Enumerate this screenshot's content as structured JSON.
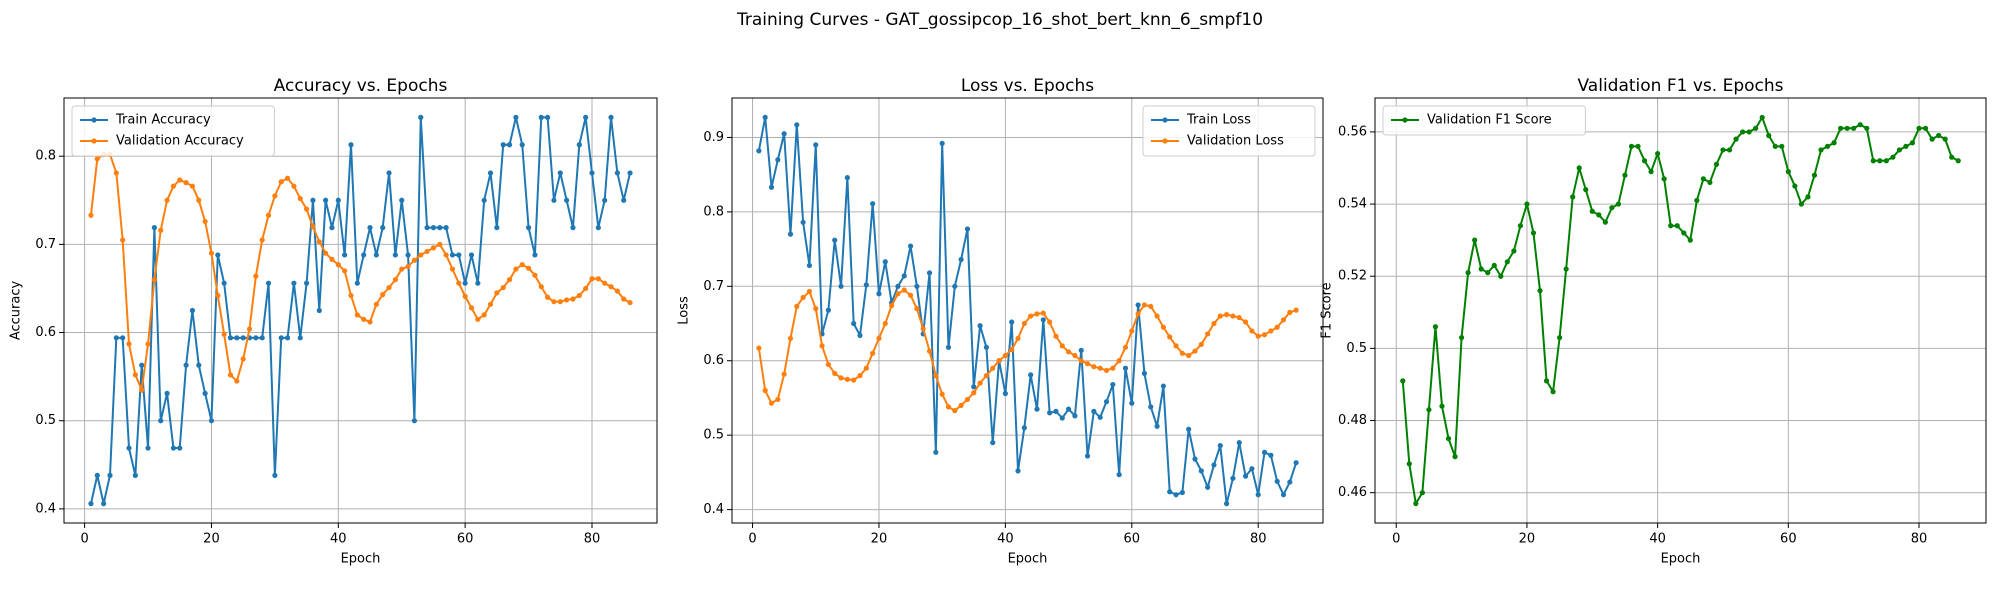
{
  "title": "Training Curves - GAT_gossipcop_16_shot_bert_knn_6_smpf10",
  "chart_data": [
    {
      "type": "line",
      "title": "Accuracy vs. Epochs",
      "xlabel": "Epoch",
      "ylabel": "Accuracy",
      "grid": true,
      "legend": "upper left",
      "x": [
        1,
        2,
        3,
        4,
        5,
        6,
        7,
        8,
        9,
        10,
        11,
        12,
        13,
        14,
        15,
        16,
        17,
        18,
        19,
        20,
        21,
        22,
        23,
        24,
        25,
        26,
        27,
        28,
        29,
        30,
        31,
        32,
        33,
        34,
        35,
        36,
        37,
        38,
        39,
        40,
        41,
        42,
        43,
        44,
        45,
        46,
        47,
        48,
        49,
        50,
        51,
        52,
        53,
        54,
        55,
        56,
        57,
        58,
        59,
        60,
        61,
        62,
        63,
        64,
        65,
        66,
        67,
        68,
        69,
        70,
        71,
        72,
        73,
        74,
        75,
        76,
        77,
        78,
        79,
        80,
        81,
        82,
        83,
        84,
        85,
        86
      ],
      "xlim": [
        -3.25,
        90.25
      ],
      "xticks": [
        0,
        20,
        40,
        60,
        80
      ],
      "ylim": [
        0.384,
        0.866
      ],
      "yticks": [
        0.4,
        0.5,
        0.6,
        0.7,
        0.8
      ],
      "series": [
        {
          "name": "Train Accuracy",
          "color": "#1f77b4",
          "values": [
            0.406,
            0.438,
            0.406,
            0.438,
            0.594,
            0.594,
            0.469,
            0.438,
            0.563,
            0.469,
            0.719,
            0.5,
            0.531,
            0.469,
            0.469,
            0.563,
            0.625,
            0.563,
            0.531,
            0.5,
            0.688,
            0.656,
            0.594,
            0.594,
            0.594,
            0.594,
            0.594,
            0.594,
            0.656,
            0.438,
            0.594,
            0.594,
            0.656,
            0.594,
            0.656,
            0.75,
            0.625,
            0.75,
            0.719,
            0.75,
            0.688,
            0.813,
            0.656,
            0.688,
            0.719,
            0.688,
            0.719,
            0.781,
            0.688,
            0.75,
            0.688,
            0.5,
            0.844,
            0.719,
            0.719,
            0.719,
            0.719,
            0.688,
            0.688,
            0.656,
            0.688,
            0.656,
            0.75,
            0.781,
            0.719,
            0.813,
            0.813,
            0.844,
            0.813,
            0.719,
            0.688,
            0.844,
            0.844,
            0.75,
            0.781,
            0.75,
            0.719,
            0.813,
            0.844,
            0.781,
            0.719,
            0.75,
            0.844,
            0.781,
            0.75,
            0.781
          ]
        },
        {
          "name": "Validation Accuracy",
          "color": "#ff7f0e",
          "values": [
            0.733,
            0.797,
            0.802,
            0.802,
            0.781,
            0.705,
            0.587,
            0.552,
            0.535,
            0.587,
            0.66,
            0.716,
            0.75,
            0.766,
            0.773,
            0.77,
            0.766,
            0.75,
            0.726,
            0.69,
            0.642,
            0.598,
            0.552,
            0.545,
            0.57,
            0.604,
            0.664,
            0.705,
            0.733,
            0.755,
            0.771,
            0.775,
            0.766,
            0.752,
            0.74,
            0.72,
            0.703,
            0.69,
            0.683,
            0.677,
            0.67,
            0.642,
            0.62,
            0.615,
            0.612,
            0.632,
            0.643,
            0.651,
            0.66,
            0.672,
            0.675,
            0.682,
            0.688,
            0.692,
            0.696,
            0.7,
            0.688,
            0.672,
            0.656,
            0.641,
            0.628,
            0.615,
            0.62,
            0.632,
            0.645,
            0.651,
            0.66,
            0.672,
            0.677,
            0.673,
            0.665,
            0.652,
            0.64,
            0.635,
            0.635,
            0.637,
            0.638,
            0.642,
            0.65,
            0.661,
            0.661,
            0.656,
            0.652,
            0.647,
            0.638,
            0.634
          ]
        }
      ]
    },
    {
      "type": "line",
      "title": "Loss vs. Epochs",
      "xlabel": "Epoch",
      "ylabel": "Loss",
      "grid": true,
      "legend": "upper right",
      "x": [
        1,
        2,
        3,
        4,
        5,
        6,
        7,
        8,
        9,
        10,
        11,
        12,
        13,
        14,
        15,
        16,
        17,
        18,
        19,
        20,
        21,
        22,
        23,
        24,
        25,
        26,
        27,
        28,
        29,
        30,
        31,
        32,
        33,
        34,
        35,
        36,
        37,
        38,
        39,
        40,
        41,
        42,
        43,
        44,
        45,
        46,
        47,
        48,
        49,
        50,
        51,
        52,
        53,
        54,
        55,
        56,
        57,
        58,
        59,
        60,
        61,
        62,
        63,
        64,
        65,
        66,
        67,
        68,
        69,
        70,
        71,
        72,
        73,
        74,
        75,
        76,
        77,
        78,
        79,
        80,
        81,
        82,
        83,
        84,
        85,
        86
      ],
      "xlim": [
        -3.25,
        90.25
      ],
      "xticks": [
        0,
        20,
        40,
        60,
        80
      ],
      "ylim": [
        0.382,
        0.953
      ],
      "yticks": [
        0.4,
        0.5,
        0.6,
        0.7,
        0.8,
        0.9
      ],
      "series": [
        {
          "name": "Train Loss",
          "color": "#1f77b4",
          "values": [
            0.882,
            0.927,
            0.833,
            0.87,
            0.905,
            0.77,
            0.917,
            0.786,
            0.728,
            0.89,
            0.636,
            0.668,
            0.762,
            0.7,
            0.846,
            0.65,
            0.634,
            0.702,
            0.811,
            0.69,
            0.733,
            0.678,
            0.7,
            0.714,
            0.754,
            0.7,
            0.636,
            0.718,
            0.477,
            0.892,
            0.618,
            0.7,
            0.736,
            0.777,
            0.565,
            0.647,
            0.618,
            0.49,
            0.6,
            0.556,
            0.652,
            0.452,
            0.51,
            0.581,
            0.535,
            0.655,
            0.53,
            0.532,
            0.523,
            0.535,
            0.526,
            0.614,
            0.472,
            0.532,
            0.524,
            0.545,
            0.568,
            0.447,
            0.59,
            0.543,
            0.675,
            0.583,
            0.538,
            0.512,
            0.566,
            0.424,
            0.42,
            0.423,
            0.508,
            0.468,
            0.452,
            0.43,
            0.46,
            0.486,
            0.408,
            0.442,
            0.49,
            0.445,
            0.455,
            0.42,
            0.477,
            0.473,
            0.438,
            0.42,
            0.437,
            0.463
          ]
        },
        {
          "name": "Validation Loss",
          "color": "#ff7f0e",
          "values": [
            0.617,
            0.56,
            0.543,
            0.548,
            0.582,
            0.63,
            0.673,
            0.685,
            0.693,
            0.67,
            0.62,
            0.595,
            0.583,
            0.577,
            0.575,
            0.574,
            0.58,
            0.59,
            0.61,
            0.63,
            0.65,
            0.674,
            0.69,
            0.695,
            0.688,
            0.67,
            0.643,
            0.613,
            0.58,
            0.555,
            0.538,
            0.533,
            0.54,
            0.548,
            0.557,
            0.57,
            0.58,
            0.59,
            0.6,
            0.607,
            0.615,
            0.63,
            0.65,
            0.66,
            0.663,
            0.664,
            0.652,
            0.633,
            0.62,
            0.612,
            0.607,
            0.6,
            0.596,
            0.592,
            0.59,
            0.587,
            0.59,
            0.6,
            0.618,
            0.64,
            0.663,
            0.675,
            0.673,
            0.66,
            0.645,
            0.632,
            0.62,
            0.61,
            0.607,
            0.613,
            0.622,
            0.636,
            0.65,
            0.66,
            0.662,
            0.66,
            0.658,
            0.652,
            0.64,
            0.633,
            0.635,
            0.64,
            0.645,
            0.655,
            0.665,
            0.668
          ]
        }
      ]
    },
    {
      "type": "line",
      "title": "Validation F1 vs. Epochs",
      "xlabel": "Epoch",
      "ylabel": "F1 Score",
      "grid": true,
      "legend": "upper left",
      "x": [
        1,
        2,
        3,
        4,
        5,
        6,
        7,
        8,
        9,
        10,
        11,
        12,
        13,
        14,
        15,
        16,
        17,
        18,
        19,
        20,
        21,
        22,
        23,
        24,
        25,
        26,
        27,
        28,
        29,
        30,
        31,
        32,
        33,
        34,
        35,
        36,
        37,
        38,
        39,
        40,
        41,
        42,
        43,
        44,
        45,
        46,
        47,
        48,
        49,
        50,
        51,
        52,
        53,
        54,
        55,
        56,
        57,
        58,
        59,
        60,
        61,
        62,
        63,
        64,
        65,
        66,
        67,
        68,
        69,
        70,
        71,
        72,
        73,
        74,
        75,
        76,
        77,
        78,
        79,
        80,
        81,
        82,
        83,
        84,
        85,
        86
      ],
      "xlim": [
        -3.25,
        90.25
      ],
      "xticks": [
        0,
        20,
        40,
        60,
        80
      ],
      "ylim": [
        0.4516,
        0.5694
      ],
      "yticks": [
        0.46,
        0.48,
        0.5,
        0.52,
        0.54,
        0.56
      ],
      "series": [
        {
          "name": "Validation F1 Score",
          "color": "#008000",
          "values": [
            0.491,
            0.468,
            0.457,
            0.46,
            0.483,
            0.506,
            0.484,
            0.475,
            0.47,
            0.503,
            0.521,
            0.53,
            0.522,
            0.521,
            0.523,
            0.52,
            0.524,
            0.527,
            0.534,
            0.54,
            0.532,
            0.516,
            0.491,
            0.488,
            0.503,
            0.522,
            0.542,
            0.55,
            0.544,
            0.538,
            0.537,
            0.535,
            0.539,
            0.54,
            0.548,
            0.556,
            0.556,
            0.552,
            0.549,
            0.554,
            0.547,
            0.534,
            0.534,
            0.532,
            0.53,
            0.541,
            0.547,
            0.546,
            0.551,
            0.555,
            0.555,
            0.558,
            0.56,
            0.56,
            0.561,
            0.564,
            0.559,
            0.556,
            0.556,
            0.549,
            0.545,
            0.54,
            0.542,
            0.548,
            0.555,
            0.556,
            0.557,
            0.561,
            0.561,
            0.561,
            0.562,
            0.561,
            0.552,
            0.552,
            0.552,
            0.553,
            0.555,
            0.556,
            0.557,
            0.561,
            0.561,
            0.558,
            0.559,
            0.558,
            0.553,
            0.552
          ]
        }
      ]
    }
  ]
}
